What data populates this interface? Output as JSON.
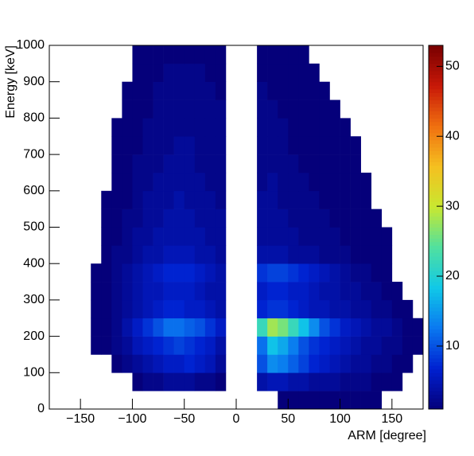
{
  "chart_data": {
    "type": "heatmap",
    "xlabel": "ARM [degree]",
    "ylabel": "Energy [keV]",
    "xlim": [
      -180,
      180
    ],
    "ylim": [
      0,
      1000
    ],
    "zlim": [
      1,
      53
    ],
    "xticks": [
      {
        "value": -150,
        "label": "−150"
      },
      {
        "value": -100,
        "label": "−100"
      },
      {
        "value": -50,
        "label": "−50"
      },
      0,
      50,
      100,
      150
    ],
    "yticks": [
      0,
      100,
      200,
      300,
      400,
      500,
      600,
      700,
      800,
      900,
      1000
    ],
    "zticks": [
      10,
      20,
      30,
      40,
      50
    ],
    "palette": [
      "#05007a",
      "#0020d0",
      "#0a78f0",
      "#10c8e8",
      "#50e0a0",
      "#c8e830",
      "#f5c020",
      "#f07010",
      "#c81808",
      "#780000"
    ],
    "xbins": [
      -180,
      -170,
      -160,
      -150,
      -140,
      -130,
      -120,
      -110,
      -100,
      -90,
      -80,
      -70,
      -60,
      -50,
      -40,
      -30,
      -20,
      -10,
      0,
      10,
      20,
      30,
      40,
      50,
      60,
      70,
      80,
      90,
      100,
      110,
      120,
      130,
      140,
      150,
      160,
      170,
      180
    ],
    "ybins": [
      0,
      50,
      100,
      150,
      200,
      250,
      300,
      350,
      400,
      450,
      500,
      550,
      600,
      650,
      700,
      750,
      800,
      850,
      900,
      950,
      1000
    ],
    "z": [
      [
        0,
        0,
        0,
        0,
        0,
        0,
        0,
        0,
        0,
        0,
        0,
        0,
        0,
        0,
        0,
        0,
        0,
        0,
        0,
        0,
        0,
        0,
        1,
        1,
        1,
        1,
        1,
        1,
        1,
        1,
        1,
        1,
        0,
        0,
        0,
        0
      ],
      [
        0,
        0,
        0,
        0,
        0,
        0,
        0,
        0,
        1,
        2,
        2,
        3,
        3,
        3,
        2,
        2,
        1,
        0,
        0,
        0,
        4,
        5,
        5,
        4,
        4,
        3,
        3,
        3,
        2,
        2,
        2,
        1,
        1,
        1,
        0,
        0
      ],
      [
        0,
        0,
        0,
        0,
        0,
        0,
        1,
        2,
        3,
        4,
        5,
        6,
        6,
        7,
        6,
        5,
        3,
        0,
        0,
        0,
        10,
        14,
        13,
        11,
        9,
        7,
        6,
        5,
        4,
        3,
        3,
        2,
        2,
        1,
        1,
        0
      ],
      [
        0,
        0,
        0,
        0,
        1,
        1,
        2,
        3,
        5,
        6,
        7,
        8,
        9,
        8,
        7,
        6,
        4,
        0,
        0,
        0,
        12,
        18,
        16,
        13,
        10,
        8,
        7,
        6,
        5,
        4,
        3,
        3,
        2,
        2,
        1,
        1
      ],
      [
        0,
        0,
        0,
        0,
        1,
        1,
        2,
        4,
        6,
        8,
        10,
        12,
        12,
        11,
        10,
        8,
        6,
        0,
        0,
        0,
        22,
        28,
        26,
        22,
        18,
        14,
        10,
        8,
        6,
        5,
        4,
        3,
        3,
        2,
        1,
        1
      ],
      [
        0,
        0,
        0,
        0,
        1,
        1,
        2,
        3,
        4,
        5,
        6,
        7,
        7,
        6,
        6,
        5,
        4,
        0,
        0,
        0,
        7,
        8,
        8,
        7,
        6,
        5,
        5,
        4,
        4,
        3,
        3,
        2,
        2,
        1,
        1,
        0
      ],
      [
        0,
        0,
        0,
        0,
        1,
        1,
        2,
        3,
        4,
        5,
        5,
        6,
        6,
        6,
        5,
        4,
        4,
        0,
        0,
        0,
        6,
        7,
        7,
        6,
        6,
        5,
        4,
        4,
        3,
        3,
        2,
        2,
        1,
        1,
        0,
        0
      ],
      [
        0,
        0,
        0,
        0,
        1,
        1,
        2,
        3,
        4,
        5,
        6,
        7,
        7,
        7,
        6,
        5,
        4,
        0,
        0,
        0,
        8,
        9,
        9,
        8,
        7,
        6,
        5,
        4,
        3,
        2,
        2,
        1,
        1,
        0,
        0,
        0
      ],
      [
        0,
        0,
        0,
        0,
        0,
        1,
        2,
        2,
        3,
        4,
        4,
        5,
        5,
        5,
        4,
        4,
        3,
        0,
        0,
        0,
        4,
        4,
        4,
        3,
        3,
        3,
        2,
        2,
        2,
        1,
        1,
        1,
        1,
        0,
        0,
        0
      ],
      [
        0,
        0,
        0,
        0,
        0,
        1,
        1,
        2,
        3,
        3,
        4,
        4,
        4,
        4,
        4,
        3,
        3,
        0,
        0,
        0,
        3,
        3,
        3,
        3,
        2,
        2,
        2,
        2,
        1,
        1,
        1,
        1,
        1,
        0,
        0,
        0
      ],
      [
        0,
        0,
        0,
        0,
        0,
        1,
        1,
        2,
        2,
        3,
        3,
        4,
        4,
        4,
        3,
        3,
        3,
        0,
        0,
        0,
        3,
        3,
        3,
        2,
        2,
        2,
        2,
        1,
        1,
        1,
        1,
        1,
        0,
        0,
        0,
        0
      ],
      [
        0,
        0,
        0,
        0,
        0,
        1,
        1,
        1,
        2,
        3,
        3,
        3,
        4,
        3,
        3,
        3,
        2,
        0,
        0,
        0,
        3,
        3,
        2,
        2,
        2,
        2,
        1,
        1,
        1,
        1,
        1,
        0,
        0,
        0,
        0,
        0
      ],
      [
        0,
        0,
        0,
        0,
        0,
        0,
        1,
        1,
        2,
        2,
        3,
        3,
        3,
        3,
        3,
        2,
        2,
        0,
        0,
        0,
        2,
        3,
        2,
        2,
        2,
        1,
        1,
        1,
        1,
        1,
        1,
        0,
        0,
        0,
        0,
        0
      ],
      [
        0,
        0,
        0,
        0,
        0,
        0,
        1,
        1,
        2,
        2,
        2,
        3,
        3,
        3,
        2,
        2,
        2,
        0,
        0,
        0,
        2,
        2,
        2,
        2,
        1,
        1,
        1,
        1,
        1,
        1,
        0,
        0,
        0,
        0,
        0,
        0
      ],
      [
        0,
        0,
        0,
        0,
        0,
        0,
        1,
        1,
        1,
        2,
        2,
        2,
        3,
        3,
        2,
        2,
        2,
        0,
        0,
        0,
        2,
        2,
        2,
        1,
        1,
        1,
        1,
        1,
        1,
        1,
        0,
        0,
        0,
        0,
        0,
        0
      ],
      [
        0,
        0,
        0,
        0,
        0,
        0,
        1,
        1,
        1,
        2,
        2,
        2,
        2,
        2,
        2,
        2,
        2,
        0,
        0,
        0,
        2,
        2,
        2,
        1,
        1,
        1,
        1,
        1,
        1,
        0,
        0,
        0,
        0,
        0,
        0,
        0
      ],
      [
        0,
        0,
        0,
        0,
        0,
        0,
        0,
        1,
        1,
        1,
        2,
        2,
        2,
        2,
        2,
        2,
        2,
        0,
        0,
        0,
        2,
        2,
        1,
        1,
        1,
        1,
        1,
        1,
        0,
        0,
        0,
        0,
        0,
        0,
        0,
        0
      ],
      [
        0,
        0,
        0,
        0,
        0,
        0,
        0,
        1,
        1,
        1,
        2,
        2,
        2,
        2,
        2,
        2,
        1,
        0,
        0,
        0,
        2,
        1,
        1,
        1,
        1,
        1,
        1,
        0,
        0,
        0,
        0,
        0,
        0,
        0,
        0,
        0
      ],
      [
        0,
        0,
        0,
        0,
        0,
        0,
        0,
        0,
        1,
        1,
        1,
        2,
        2,
        2,
        2,
        1,
        1,
        0,
        0,
        0,
        1,
        1,
        1,
        1,
        1,
        1,
        0,
        0,
        0,
        0,
        0,
        0,
        0,
        0,
        0,
        0
      ],
      [
        0,
        0,
        0,
        0,
        0,
        0,
        0,
        0,
        1,
        1,
        1,
        1,
        1,
        1,
        1,
        1,
        1,
        0,
        0,
        0,
        1,
        1,
        1,
        1,
        1,
        0,
        0,
        0,
        0,
        0,
        0,
        0,
        0,
        0,
        0,
        0
      ]
    ]
  }
}
